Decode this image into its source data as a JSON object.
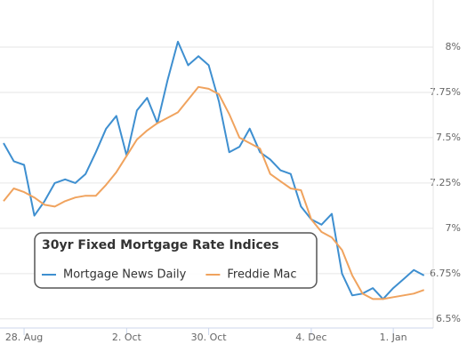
{
  "chart_data": {
    "type": "line",
    "legend_title": "30yr Fixed Mortgage Rate Indices",
    "legend": "lower left",
    "grid": true,
    "categories": [
      null,
      null,
      "28. Aug",
      null,
      null,
      null,
      null,
      null,
      null,
      null,
      null,
      null,
      "2. Oct",
      null,
      null,
      null,
      null,
      null,
      null,
      null,
      "30. Oct",
      null,
      null,
      null,
      null,
      null,
      null,
      null,
      null,
      null,
      "4. Dec",
      null,
      null,
      null,
      null,
      null,
      null,
      null,
      "1. Jan",
      null,
      null,
      null
    ],
    "series": [
      {
        "name": "Mortgage News Daily",
        "color": "#3e8fd0",
        "values": [
          7.47,
          7.37,
          7.35,
          7.07,
          7.15,
          7.25,
          7.27,
          7.25,
          7.3,
          7.42,
          7.55,
          7.62,
          7.4,
          7.65,
          7.72,
          7.58,
          7.82,
          8.03,
          7.9,
          7.95,
          7.9,
          7.7,
          7.42,
          7.45,
          7.55,
          7.42,
          7.38,
          7.32,
          7.3,
          7.12,
          7.05,
          7.02,
          7.08,
          6.75,
          6.63,
          6.64,
          6.67,
          6.61,
          6.67,
          6.72,
          6.77,
          6.74
        ]
      },
      {
        "name": "Freddie Mac",
        "color": "#f0a35e",
        "values": [
          7.15,
          7.22,
          7.2,
          7.17,
          7.13,
          7.12,
          7.15,
          7.17,
          7.18,
          7.18,
          7.24,
          7.31,
          7.4,
          7.49,
          7.54,
          7.58,
          7.61,
          7.64,
          7.71,
          7.78,
          7.77,
          7.74,
          7.63,
          7.5,
          7.47,
          7.44,
          7.3,
          7.26,
          7.22,
          7.21,
          7.05,
          6.98,
          6.95,
          6.88,
          6.74,
          6.64,
          6.61,
          6.61,
          6.62,
          6.63,
          6.64,
          6.66
        ]
      }
    ],
    "ylim": [
      6.45,
      8.25
    ],
    "yticks": [
      {
        "value": 6.5,
        "label": "6.5%"
      },
      {
        "value": 6.75,
        "label": "6.75%"
      },
      {
        "value": 7,
        "label": "7%"
      },
      {
        "value": 7.25,
        "label": "7.25%"
      },
      {
        "value": 7.5,
        "label": "7.5%"
      },
      {
        "value": 7.75,
        "label": "7.75%"
      },
      {
        "value": 8,
        "label": "8%"
      }
    ]
  }
}
